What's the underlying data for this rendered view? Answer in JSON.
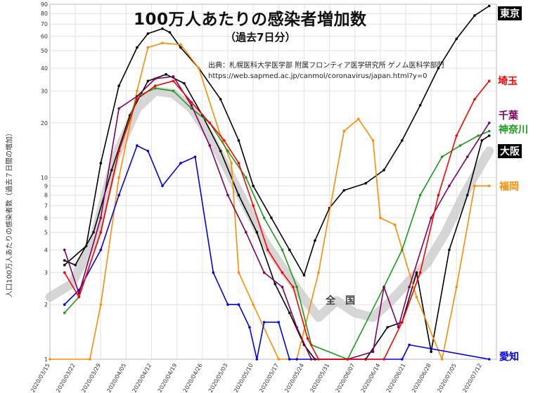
{
  "title": "100万人あたりの感染者増加数",
  "subtitle": "（過去7日分）",
  "source": {
    "line1": "出典：札幌医科大学医学部 附属フロンティア医学研究所 ゲノム医科学部門",
    "line2": "https://web.sapmed.ac.jp/canmol/coronavirus/japan.html?y=0"
  },
  "ylabel": "人口100万人あたりの感染者数（過去７日間の増加）",
  "national_label": "全国",
  "colors": {
    "tokyo": "#000000",
    "saitama": "#ff0000",
    "chiba": "#800060",
    "kanagawa": "#1a9a1a",
    "osaka": "#000000",
    "fukuoka": "#ff8c00",
    "aichi": "#0000ee",
    "national": "#c8c8c8",
    "grid": "#e2e2e2"
  },
  "chart_data": {
    "type": "line",
    "title": "100万人あたりの感染者増加数",
    "subtitle": "（過去7日分）",
    "xlabel": "",
    "ylabel": "人口100万人あたりの感染者数（過去７日間の増加）",
    "yscale": "log",
    "ylim": [
      1,
      90
    ],
    "xlim": [
      "2020-03-15",
      "2020-07-16"
    ],
    "grid": true,
    "x_ticks": [
      "2020/03/15",
      "2020/03/22",
      "2020/03/29",
      "2020/04/05",
      "2020/04/12",
      "2020/04/19",
      "2020/04/26",
      "2020/05/03",
      "2020/05/10",
      "2020/05/17",
      "2020/05/24",
      "2020/05/31",
      "2020/06/07",
      "2020/06/14",
      "2020/06/21",
      "2020/06/28",
      "2020/07/05",
      "2020/07/12"
    ],
    "y_ticks": [
      1,
      2,
      3,
      4,
      5,
      6,
      7,
      8,
      9,
      10,
      20,
      30,
      40,
      50,
      60,
      70,
      80,
      90
    ],
    "series": [
      {
        "name": "東京",
        "color": "#000000",
        "x": [
          "2020-03-19",
          "2020-03-25",
          "2020-03-29",
          "2020-04-03",
          "2020-04-08",
          "2020-04-11",
          "2020-04-15",
          "2020-04-17",
          "2020-04-20",
          "2020-04-25",
          "2020-05-01",
          "2020-05-06",
          "2020-05-10",
          "2020-05-15",
          "2020-05-20",
          "2020-05-24",
          "2020-05-27",
          "2020-05-31",
          "2020-06-04",
          "2020-06-10",
          "2020-06-15",
          "2020-06-20",
          "2020-06-25",
          "2020-06-30",
          "2020-07-05",
          "2020-07-10",
          "2020-07-14"
        ],
        "y": [
          3.3,
          4.2,
          12,
          32,
          52,
          62,
          66,
          63,
          52,
          40,
          27,
          16,
          9,
          6,
          4,
          2.9,
          4.5,
          6.8,
          8.5,
          9.3,
          11,
          16,
          25,
          40,
          58,
          78,
          88
        ]
      },
      {
        "name": "埼玉",
        "color": "#ff0000",
        "x": [
          "2020-03-19",
          "2020-03-23",
          "2020-03-29",
          "2020-04-03",
          "2020-04-08",
          "2020-04-13",
          "2020-04-18",
          "2020-04-23",
          "2020-04-28",
          "2020-05-02",
          "2020-05-06",
          "2020-05-10",
          "2020-05-14",
          "2020-05-18",
          "2020-05-21",
          "2020-05-25",
          "2020-05-28",
          "2020-06-05",
          "2020-06-15",
          "2020-06-20",
          "2020-06-25",
          "2020-06-30",
          "2020-07-05",
          "2020-07-10",
          "2020-07-14"
        ],
        "y": [
          3,
          2.2,
          5,
          14,
          27,
          32,
          34,
          26,
          20,
          16,
          12,
          7,
          4,
          3,
          2.5,
          1.3,
          1,
          1,
          1,
          1.6,
          3,
          8,
          17,
          27,
          34
        ]
      },
      {
        "name": "千葉",
        "color": "#800060",
        "x": [
          "2020-03-19",
          "2020-03-23",
          "2020-03-29",
          "2020-04-03",
          "2020-04-08",
          "2020-04-13",
          "2020-04-18",
          "2020-04-23",
          "2020-04-28",
          "2020-05-03",
          "2020-05-08",
          "2020-05-13",
          "2020-05-18",
          "2020-05-22",
          "2020-05-26",
          "2020-06-05",
          "2020-06-12",
          "2020-06-15",
          "2020-06-19",
          "2020-06-22",
          "2020-06-28",
          "2020-07-03",
          "2020-07-08",
          "2020-07-14"
        ],
        "y": [
          4,
          2.3,
          6,
          24,
          28,
          35,
          36,
          25,
          15,
          8,
          5,
          3,
          2.5,
          1.5,
          1,
          1,
          1.1,
          2.5,
          1.5,
          2.5,
          6,
          9,
          13,
          20
        ]
      },
      {
        "name": "神奈川",
        "color": "#1a9a1a",
        "x": [
          "2020-03-19",
          "2020-03-23",
          "2020-03-29",
          "2020-04-03",
          "2020-04-08",
          "2020-04-13",
          "2020-04-18",
          "2020-04-23",
          "2020-04-28",
          "2020-05-03",
          "2020-05-08",
          "2020-05-13",
          "2020-05-18",
          "2020-05-22",
          "2020-05-26",
          "2020-06-05",
          "2020-06-15",
          "2020-06-20",
          "2020-06-25",
          "2020-07-01",
          "2020-07-06",
          "2020-07-11",
          "2020-07-14"
        ],
        "y": [
          1.8,
          2.2,
          5,
          14,
          28,
          31,
          30,
          24,
          20,
          14,
          10,
          6,
          4,
          2.5,
          1.2,
          1,
          2.5,
          4,
          8,
          13,
          15,
          17,
          18
        ]
      },
      {
        "name": "大阪",
        "color": "#000000",
        "x": [
          "2020-03-19",
          "2020-03-22",
          "2020-03-27",
          "2020-04-01",
          "2020-04-06",
          "2020-04-11",
          "2020-04-16",
          "2020-04-21",
          "2020-04-26",
          "2020-05-01",
          "2020-05-06",
          "2020-05-11",
          "2020-05-16",
          "2020-05-20",
          "2020-05-24",
          "2020-05-27",
          "2020-06-10",
          "2020-06-16",
          "2020-06-20",
          "2020-06-24",
          "2020-06-28",
          "2020-07-03",
          "2020-07-08",
          "2020-07-12",
          "2020-07-14"
        ],
        "y": [
          3.5,
          3.3,
          5,
          11,
          22,
          34,
          37,
          33,
          22,
          14,
          8,
          5,
          2.6,
          1.8,
          1.2,
          1,
          1,
          1.5,
          1.6,
          3,
          1.1,
          4,
          8,
          16,
          17
        ]
      },
      {
        "name": "福岡",
        "color": "#ff8c00",
        "x": [
          "2020-03-15",
          "2020-03-26",
          "2020-03-29",
          "2020-04-03",
          "2020-04-08",
          "2020-04-11",
          "2020-04-15",
          "2020-04-20",
          "2020-04-25",
          "2020-05-01",
          "2020-05-04",
          "2020-05-06",
          "2020-05-10",
          "2020-05-17",
          "2020-05-22",
          "2020-05-28",
          "2020-06-04",
          "2020-06-08",
          "2020-06-12",
          "2020-06-14",
          "2020-06-18",
          "2020-06-24",
          "2020-07-01",
          "2020-07-05",
          "2020-07-10",
          "2020-07-14"
        ],
        "y": [
          1,
          1,
          2,
          10,
          30,
          52,
          55,
          54,
          40,
          17,
          12,
          3,
          2,
          1,
          1,
          3,
          18,
          21,
          16,
          6,
          5.5,
          2.2,
          1,
          2.5,
          9,
          9
        ]
      },
      {
        "name": "愛知",
        "color": "#0000ee",
        "x": [
          "2020-03-19",
          "2020-03-23",
          "2020-03-29",
          "2020-04-03",
          "2020-04-08",
          "2020-04-11",
          "2020-04-15",
          "2020-04-20",
          "2020-04-24",
          "2020-04-29",
          "2020-05-03",
          "2020-05-06",
          "2020-05-09",
          "2020-05-11",
          "2020-05-13",
          "2020-05-17",
          "2020-05-20",
          "2020-05-22",
          "2020-06-20",
          "2020-06-22",
          "2020-07-14"
        ],
        "y": [
          2,
          2.4,
          4,
          8,
          15,
          14,
          9,
          12,
          13,
          3,
          2,
          2,
          1.5,
          1,
          1.6,
          1.6,
          1,
          1,
          1,
          1.2,
          1
        ]
      },
      {
        "name": "全国",
        "color": "#c8c8c8",
        "x": [
          "2020-03-15",
          "2020-03-21",
          "2020-03-27",
          "2020-04-02",
          "2020-04-08",
          "2020-04-13",
          "2020-04-18",
          "2020-04-23",
          "2020-04-28",
          "2020-05-03",
          "2020-05-08",
          "2020-05-13",
          "2020-05-18",
          "2020-05-23",
          "2020-05-28",
          "2020-06-02",
          "2020-06-07",
          "2020-06-12",
          "2020-06-17",
          "2020-06-22",
          "2020-06-27",
          "2020-07-02",
          "2020-07-07",
          "2020-07-12",
          "2020-07-14"
        ],
        "y": [
          2.2,
          2.6,
          4.5,
          13,
          24,
          30,
          29,
          24,
          17,
          11,
          7,
          4.5,
          3.2,
          2.3,
          1.7,
          2.1,
          1.8,
          1.7,
          2.1,
          2.7,
          3.4,
          5,
          8,
          12,
          14
        ]
      }
    ]
  },
  "labels": {
    "tokyo": "東京",
    "saitama": "埼玉",
    "chiba": "千葉",
    "kanagawa": "神奈川",
    "osaka": "大阪",
    "fukuoka": "福岡",
    "aichi": "愛知"
  }
}
